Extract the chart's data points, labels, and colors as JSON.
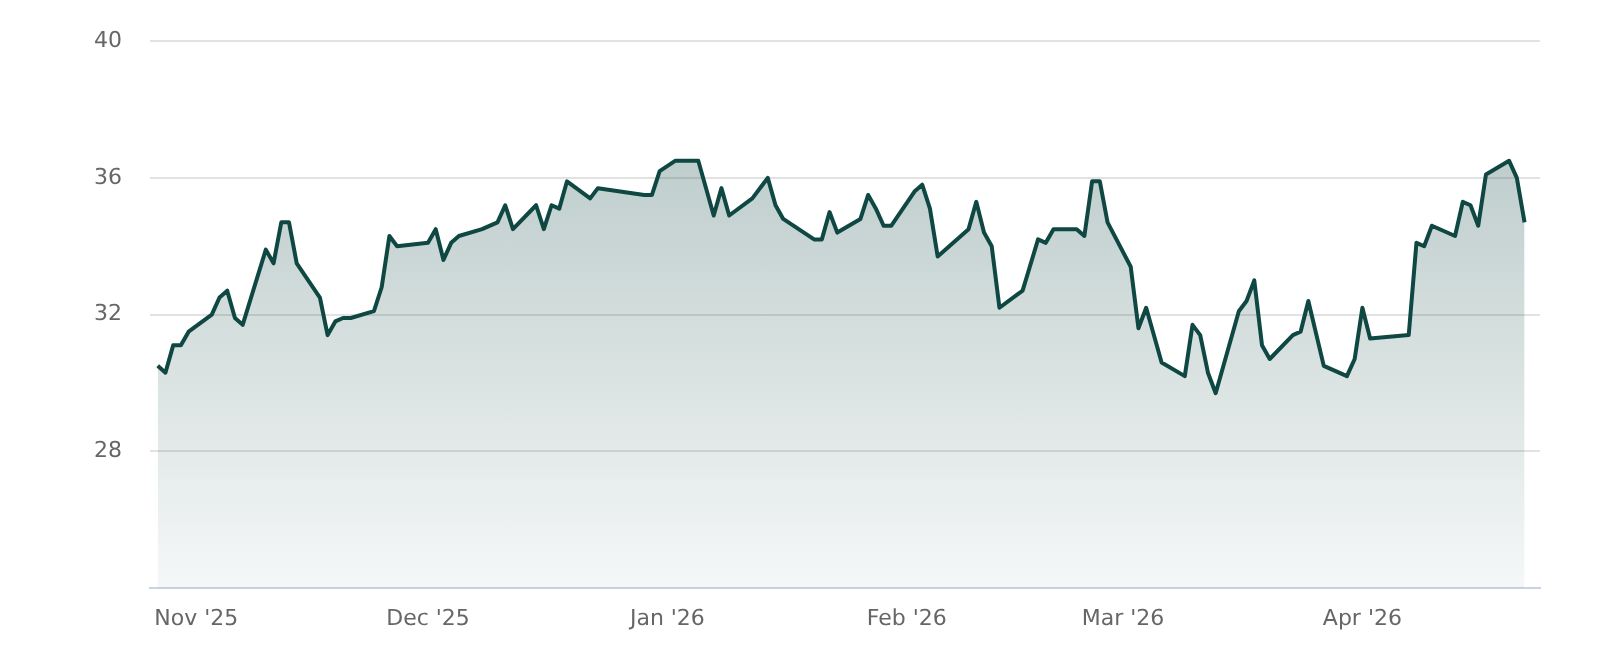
{
  "chart_data": {
    "type": "area",
    "x": [
      "2025-10-27",
      "2025-10-28",
      "2025-10-29",
      "2025-10-30",
      "2025-10-31",
      "2025-11-03",
      "2025-11-04",
      "2025-11-05",
      "2025-11-06",
      "2025-11-07",
      "2025-11-10",
      "2025-11-11",
      "2025-11-12",
      "2025-11-13",
      "2025-11-14",
      "2025-11-17",
      "2025-11-18",
      "2025-11-19",
      "2025-11-20",
      "2025-11-21",
      "2025-11-24",
      "2025-11-25",
      "2025-11-26",
      "2025-11-27",
      "2025-12-01",
      "2025-12-02",
      "2025-12-03",
      "2025-12-04",
      "2025-12-05",
      "2025-12-08",
      "2025-12-10",
      "2025-12-11",
      "2025-12-12",
      "2025-12-15",
      "2025-12-16",
      "2025-12-17",
      "2025-12-18",
      "2025-12-19",
      "2025-12-22",
      "2025-12-23",
      "2025-12-29",
      "2025-12-30",
      "2025-12-31",
      "2026-01-02",
      "2026-01-05",
      "2026-01-07",
      "2026-01-08",
      "2026-01-09",
      "2026-01-12",
      "2026-01-14",
      "2026-01-15",
      "2026-01-16",
      "2026-01-20",
      "2026-01-21",
      "2026-01-22",
      "2026-01-23",
      "2026-01-26",
      "2026-01-27",
      "2026-01-28",
      "2026-01-29",
      "2026-01-30",
      "2026-02-02",
      "2026-02-03",
      "2026-02-04",
      "2026-02-05",
      "2026-02-09",
      "2026-02-10",
      "2026-02-11",
      "2026-02-12",
      "2026-02-13",
      "2026-02-16",
      "2026-02-18",
      "2026-02-19",
      "2026-02-20",
      "2026-02-23",
      "2026-02-24",
      "2026-02-25",
      "2026-02-26",
      "2026-02-27",
      "2026-03-02",
      "2026-03-03",
      "2026-03-04",
      "2026-03-06",
      "2026-03-09",
      "2026-03-10",
      "2026-03-11",
      "2026-03-12",
      "2026-03-13",
      "2026-03-16",
      "2026-03-17",
      "2026-03-18",
      "2026-03-19",
      "2026-03-20",
      "2026-03-23",
      "2026-03-24",
      "2026-03-25",
      "2026-03-27",
      "2026-03-30",
      "2026-03-31",
      "2026-04-01",
      "2026-04-02",
      "2026-04-07",
      "2026-04-08",
      "2026-04-09",
      "2026-04-10",
      "2026-04-13",
      "2026-04-14",
      "2026-04-15",
      "2026-04-16",
      "2026-04-17",
      "2026-04-20",
      "2026-04-21",
      "2026-04-22"
    ],
    "series": [
      {
        "color": "#0f4743",
        "values": [
          30.5,
          30.3,
          31.1,
          31.1,
          31.5,
          32.0,
          32.5,
          32.7,
          31.9,
          31.7,
          33.9,
          33.5,
          34.7,
          34.7,
          33.5,
          32.5,
          31.4,
          31.8,
          31.9,
          31.9,
          32.1,
          32.8,
          34.3,
          34.0,
          34.1,
          34.5,
          33.6,
          34.1,
          34.3,
          34.5,
          34.7,
          35.2,
          34.5,
          35.2,
          34.5,
          35.2,
          35.1,
          35.9,
          35.4,
          35.7,
          35.5,
          35.5,
          36.2,
          36.5,
          36.5,
          34.9,
          35.7,
          34.9,
          35.4,
          36.0,
          35.2,
          34.8,
          34.2,
          34.2,
          35.0,
          34.4,
          34.8,
          35.5,
          35.1,
          34.6,
          34.6,
          35.6,
          35.8,
          35.1,
          33.7,
          34.5,
          35.3,
          34.4,
          34.0,
          32.2,
          32.7,
          34.2,
          34.1,
          34.5,
          34.5,
          34.3,
          35.9,
          35.9,
          34.7,
          33.4,
          31.6,
          32.2,
          30.6,
          30.2,
          31.7,
          31.4,
          30.3,
          29.7,
          32.1,
          32.4,
          33.0,
          31.1,
          30.7,
          31.4,
          31.5,
          32.4,
          30.5,
          30.2,
          30.7,
          32.2,
          31.3,
          31.4,
          34.1,
          34.0,
          34.6,
          34.3,
          35.3,
          35.2,
          34.6,
          36.1,
          36.5,
          36.0,
          34.7
        ]
      }
    ],
    "xlim": [
      "2025-10-26",
      "2026-04-24"
    ],
    "xticks": [
      {
        "value": "2025-11-01",
        "label": "Nov '25"
      },
      {
        "value": "2025-12-01",
        "label": "Dec '25"
      },
      {
        "value": "2026-01-01",
        "label": "Jan '26"
      },
      {
        "value": "2026-02-01",
        "label": "Feb '26"
      },
      {
        "value": "2026-03-01",
        "label": "Mar '26"
      },
      {
        "value": "2026-04-01",
        "label": "Apr '26"
      }
    ],
    "ylim": [
      24,
      40
    ],
    "yticks": [
      28,
      32,
      36,
      40
    ],
    "grid": "y",
    "legend": false,
    "marker": "none",
    "line_style": "solid"
  }
}
